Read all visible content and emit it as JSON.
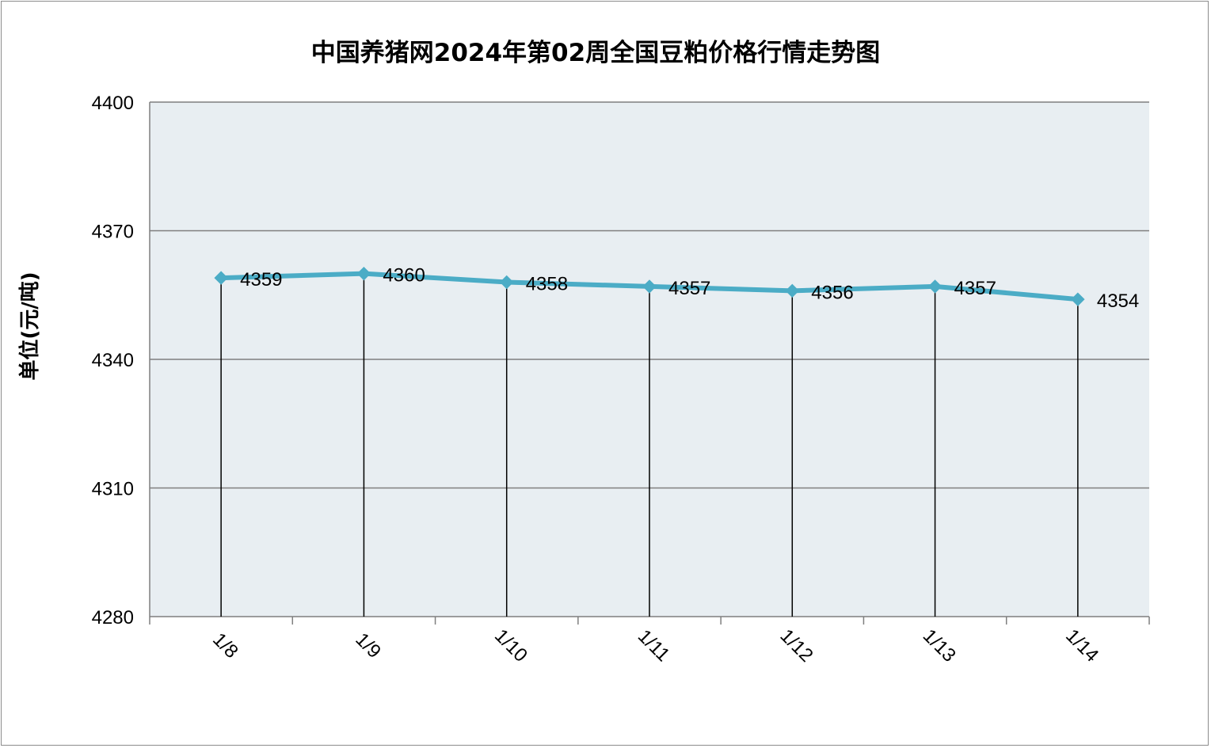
{
  "chart_data": {
    "type": "line",
    "title": "中国养猪网2024年第02周全国豆粕价格行情走势图",
    "ylabel": "单位(元/吨)",
    "xlabel": "",
    "categories": [
      "1/8",
      "1/9",
      "1/10",
      "1/11",
      "1/12",
      "1/13",
      "1/14"
    ],
    "series": [
      {
        "values": [
          4359,
          4360,
          4358,
          4357,
          4356,
          4357,
          4354
        ]
      }
    ],
    "data_labels": [
      "4359",
      "4360",
      "4358",
      "4357",
      "4356",
      "4357",
      "4354"
    ],
    "ylim": [
      4280,
      4400
    ],
    "yticks": [
      4280,
      4310,
      4340,
      4370,
      4400
    ],
    "ytick_labels": [
      "4280",
      "4310",
      "4340",
      "4370",
      "4400"
    ],
    "grid": true,
    "drop_lines": true,
    "markers": "diamond",
    "colors": {
      "line": "#4BACC6",
      "plot_background": "#E8EEF2",
      "grid": "#7F7F7F",
      "drop_line": "#000000",
      "border": "#8C8C8C"
    }
  }
}
